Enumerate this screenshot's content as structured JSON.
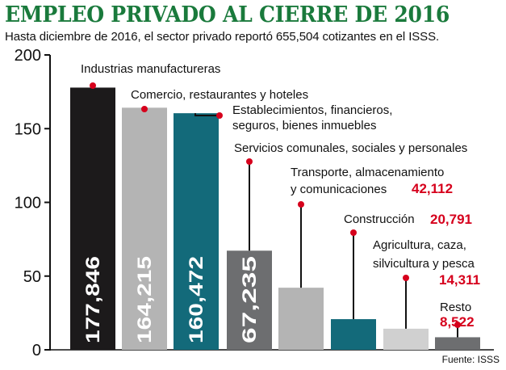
{
  "title": "EMPLEO PRIVADO AL CIERRE DE 2016",
  "subtitle": "Hasta diciembre de 2016, el sector privado reportó 655,504 cotizantes en el ISSS.",
  "source": "Fuente: ISSS",
  "chart_data": {
    "type": "bar",
    "ylim": [
      0,
      200
    ],
    "yticks": [
      "0",
      "50",
      "100",
      "150",
      "200"
    ],
    "bars": [
      {
        "label": [
          "Industrias manufactureras"
        ],
        "value": 177846,
        "value_text": "177,846",
        "color": "#1c1a1b",
        "value_inside": true
      },
      {
        "label": [
          "Comercio, restaurantes y hoteles"
        ],
        "value": 164215,
        "value_text": "164,215",
        "color": "#b4b4b4",
        "value_inside": true
      },
      {
        "label": [
          "Establecimientos, financieros,",
          "seguros, bienes inmuebles"
        ],
        "value": 160472,
        "value_text": "160,472",
        "color": "#136a7a",
        "value_inside": true
      },
      {
        "label": [
          "Servicios comunales, sociales y personales"
        ],
        "value": 67235,
        "value_text": "67,235",
        "color": "#6d6e70",
        "value_inside": true
      },
      {
        "label": [
          "Transporte, almacenamiento",
          "y comunicaciones"
        ],
        "value": 42112,
        "value_text": "42,112",
        "color": "#b4b4b4",
        "value_inside": false
      },
      {
        "label": [
          "Construcción"
        ],
        "value": 20791,
        "value_text": "20,791",
        "color": "#136a7a",
        "value_inside": false
      },
      {
        "label": [
          "Agricultura, caza,",
          "silvicultura y pesca"
        ],
        "value": 14311,
        "value_text": "14,311",
        "color": "#d0d0d0",
        "value_inside": false
      },
      {
        "label": [
          "Resto"
        ],
        "value": 8522,
        "value_text": "8,522",
        "color": "#6d6e70",
        "value_inside": false
      }
    ],
    "accent_color": "#d6001c"
  }
}
